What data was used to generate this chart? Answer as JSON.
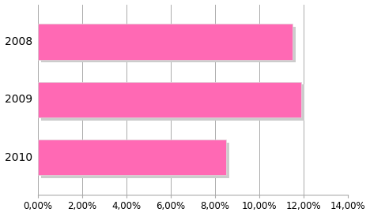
{
  "categories": [
    "2010",
    "2009",
    "2008"
  ],
  "values": [
    0.085,
    0.119,
    0.115
  ],
  "bar_color": "#FF69B4",
  "bar_edgecolor": "#DDDDDD",
  "shadow_color": "#CCCCCC",
  "xlim": [
    0,
    0.14
  ],
  "xticks": [
    0.0,
    0.02,
    0.04,
    0.06,
    0.08,
    0.1,
    0.12,
    0.14
  ],
  "xtick_labels": [
    "0,00%",
    "2,00%",
    "4,00%",
    "6,00%",
    "8,00%",
    "10,00%",
    "12,00%",
    "14,00%"
  ],
  "background_color": "#FFFFFF",
  "grid_color": "#AAAAAA",
  "bar_height": 0.62,
  "tick_fontsize": 8.5,
  "ytick_fontsize": 10,
  "figsize": [
    4.68,
    2.74
  ],
  "dpi": 100
}
